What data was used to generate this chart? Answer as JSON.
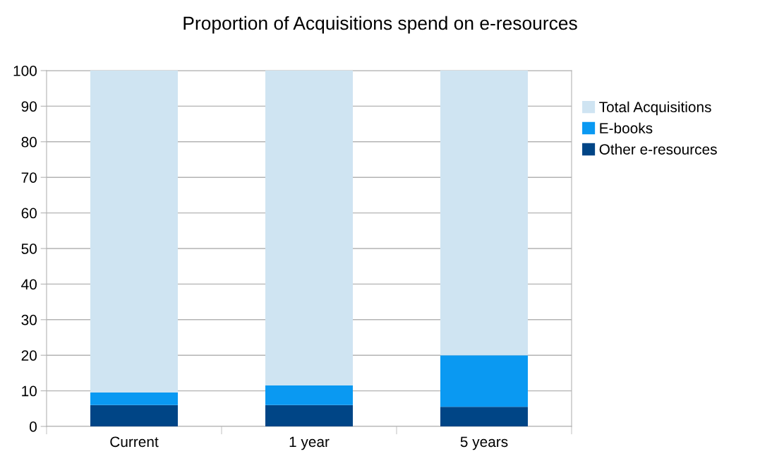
{
  "chart_data": {
    "type": "bar",
    "title": "Proportion of Acquisitions spend on e-resources",
    "categories": [
      "Current",
      "1 year",
      "5 years"
    ],
    "stacked": true,
    "series": [
      {
        "name": "Other e-resources",
        "color": "#004586",
        "values": [
          6,
          6,
          5.5
        ]
      },
      {
        "name": "E-books",
        "color": "#0a99f2",
        "values": [
          3.5,
          5.5,
          14.5
        ]
      },
      {
        "name": "Total Acquisitions",
        "color": "#cfe4f2",
        "values": [
          90.5,
          88.5,
          80
        ]
      }
    ],
    "ylim": [
      0,
      100
    ],
    "yticks": [
      0,
      10,
      20,
      30,
      40,
      50,
      60,
      70,
      80,
      90,
      100
    ],
    "grid": "y",
    "legend": "right"
  }
}
